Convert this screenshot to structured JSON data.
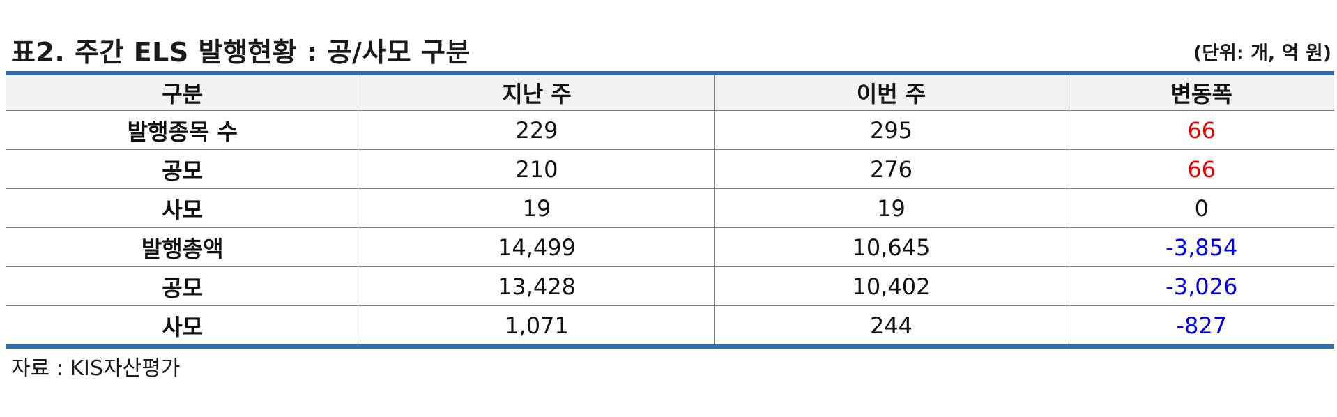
{
  "title": "표2. 주간 ELS 발행현황 : 공/사모 구분",
  "unit": "(단위: 개, 억 원)",
  "colors": {
    "accent_border": "#2e6db0",
    "header_bg": "#f2f2f2",
    "positive": "#e00000",
    "negative": "#0000ee",
    "neutral": "#111111"
  },
  "table": {
    "headers": [
      "구분",
      "지난 주",
      "이번 주",
      "변동폭"
    ],
    "rows": [
      {
        "label": "발행종목 수",
        "prev": "229",
        "curr": "295",
        "change": "66",
        "change_sign": "positive"
      },
      {
        "label": "공모",
        "prev": "210",
        "curr": "276",
        "change": "66",
        "change_sign": "positive"
      },
      {
        "label": "사모",
        "prev": "19",
        "curr": "19",
        "change": "0",
        "change_sign": "neutral"
      },
      {
        "label": "발행총액",
        "prev": "14,499",
        "curr": "10,645",
        "change": "-3,854",
        "change_sign": "negative"
      },
      {
        "label": "공모",
        "prev": "13,428",
        "curr": "10,402",
        "change": "-3,026",
        "change_sign": "negative"
      },
      {
        "label": "사모",
        "prev": "1,071",
        "curr": "244",
        "change": "-827",
        "change_sign": "negative"
      }
    ]
  },
  "source": "자료 : KIS자산평가"
}
